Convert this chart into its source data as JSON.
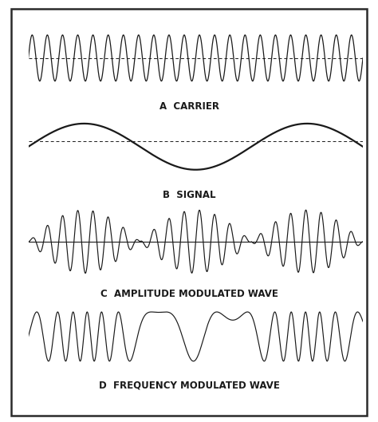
{
  "labels": [
    "A  CARRIER",
    "B  SIGNAL",
    "C  AMPLITUDE MODULATED WAVE",
    "D  FREQUENCY MODULATED WAVE"
  ],
  "label_fontsize": 8.5,
  "background_color": "#ffffff",
  "panel_bg": "#ffffff",
  "line_color": "#1a1a1a",
  "border_color": "#2a2a2a",
  "carrier_freq": 22,
  "carrier_amp": 1.0,
  "signal_freq": 1.5,
  "signal_amp": 1.0,
  "am_carrier_freq": 22,
  "fm_base_freq": 8,
  "fm_delta_freq": 16,
  "n_points": 3000
}
